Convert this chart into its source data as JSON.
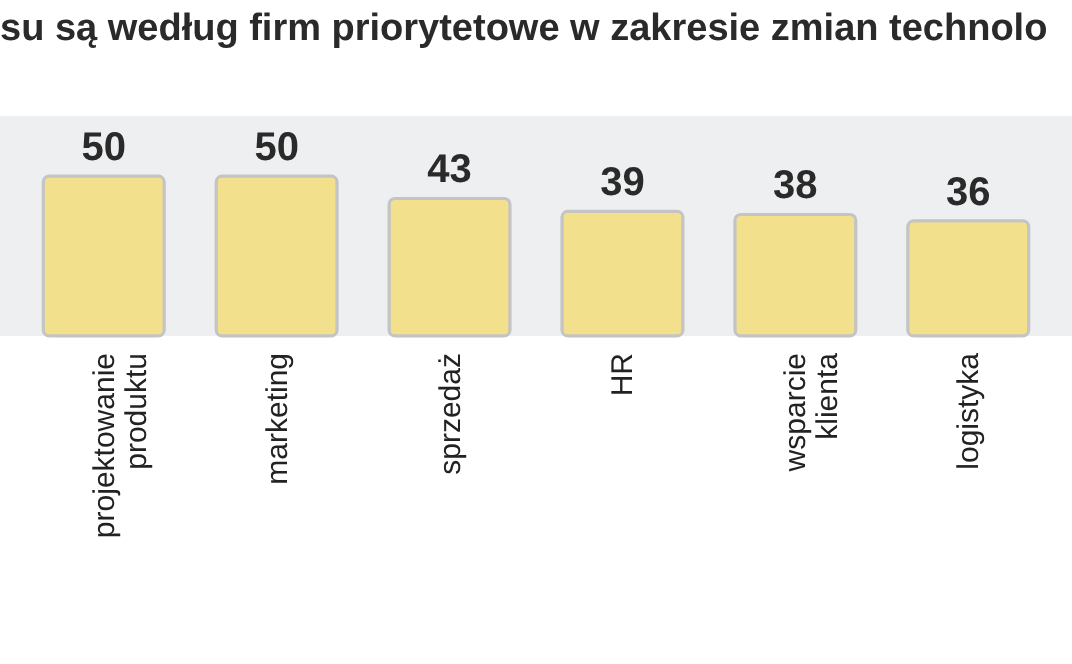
{
  "chart_data": {
    "type": "bar",
    "title": "su są według firm priorytetowe w zakresie zmian technolo",
    "categories": [
      "projektowanie produktu",
      "marketing",
      "sprzedaż",
      "HR",
      "wsparcie klienta",
      "logistyka"
    ],
    "values": [
      50,
      50,
      43,
      39,
      38,
      36
    ],
    "color": "#f3e08c",
    "data_labels": true
  }
}
